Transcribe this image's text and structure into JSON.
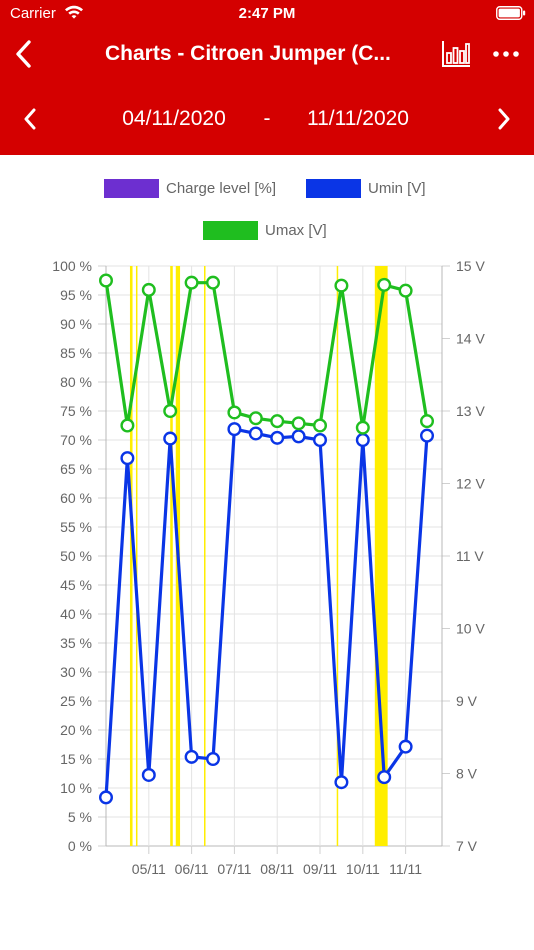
{
  "status_bar": {
    "carrier": "Carrier",
    "time": "2:47 PM"
  },
  "nav": {
    "title": "Charts - Citroen Jumper (C...",
    "back_icon": "chevron-left-icon",
    "chart_icon": "bar-chart-icon",
    "more_icon": "more-horizontal-icon"
  },
  "date_range": {
    "from": "04/11/2020",
    "separator": "-",
    "to": "11/11/2020"
  },
  "colors": {
    "header_bg": "#d40000",
    "charge": "#6d2fd0",
    "umin": "#0a35e6",
    "umax": "#1fbe1f",
    "highlight": "#ffee00"
  },
  "chart_data": {
    "type": "line",
    "legend": [
      {
        "label": "Charge level [%]",
        "color": "#6d2fd0"
      },
      {
        "label": "Umin [V]",
        "color": "#0a35e6"
      },
      {
        "label": "Umax [V]",
        "color": "#1fbe1f"
      }
    ],
    "y_left": {
      "min": 0,
      "max": 100,
      "step": 5,
      "ticks": [
        "0 %",
        "5 %",
        "10 %",
        "15 %",
        "20 %",
        "25 %",
        "30 %",
        "35 %",
        "40 %",
        "45 %",
        "50 %",
        "55 %",
        "60 %",
        "65 %",
        "70 %",
        "75 %",
        "80 %",
        "85 %",
        "90 %",
        "95 %",
        "100 %"
      ]
    },
    "y_right": {
      "min": 7,
      "max": 15,
      "step": 1,
      "ticks": [
        "7 V",
        "8 V",
        "9 V",
        "10 V",
        "11 V",
        "12 V",
        "13 V",
        "14 V",
        "15 V"
      ]
    },
    "x_axis": {
      "min": 4.0,
      "max": 11.85,
      "ticks": [
        {
          "value": 5,
          "label": "05/11"
        },
        {
          "value": 6,
          "label": "06/11"
        },
        {
          "value": 7,
          "label": "07/11"
        },
        {
          "value": 8,
          "label": "08/11"
        },
        {
          "value": 9,
          "label": "09/11"
        },
        {
          "value": 10,
          "label": "10/11"
        },
        {
          "value": 11,
          "label": "11/11"
        }
      ]
    },
    "grid": true,
    "series": [
      {
        "name": "Umin [V]",
        "color": "#0a35e6",
        "axis": "right",
        "x": [
          4.0,
          4.5,
          5.0,
          5.5,
          6.0,
          6.5,
          7.0,
          7.5,
          8.0,
          8.5,
          9.0,
          9.5,
          10.0,
          10.5,
          11.0,
          11.5
        ],
        "values": [
          7.67,
          12.35,
          7.98,
          12.62,
          8.23,
          8.2,
          12.75,
          12.69,
          12.63,
          12.65,
          12.6,
          7.88,
          12.6,
          7.95,
          8.37,
          12.66
        ]
      },
      {
        "name": "Umax [V]",
        "color": "#1fbe1f",
        "axis": "right",
        "x": [
          4.0,
          4.5,
          5.0,
          5.5,
          6.0,
          6.5,
          7.0,
          7.5,
          8.0,
          8.5,
          9.0,
          9.5,
          10.0,
          10.5,
          11.0,
          11.5
        ],
        "values": [
          14.8,
          12.8,
          14.67,
          13.0,
          14.77,
          14.77,
          12.98,
          12.9,
          12.86,
          12.83,
          12.8,
          14.73,
          12.77,
          14.74,
          14.66,
          12.86
        ]
      }
    ],
    "highlight_bands": [
      {
        "x0": 4.56,
        "x1": 4.62
      },
      {
        "x0": 4.7,
        "x1": 4.73
      },
      {
        "x0": 5.5,
        "x1": 5.56
      },
      {
        "x0": 5.63,
        "x1": 5.73
      },
      {
        "x0": 6.29,
        "x1": 6.32
      },
      {
        "x0": 9.39,
        "x1": 9.42
      },
      {
        "x0": 10.28,
        "x1": 10.58
      }
    ]
  }
}
